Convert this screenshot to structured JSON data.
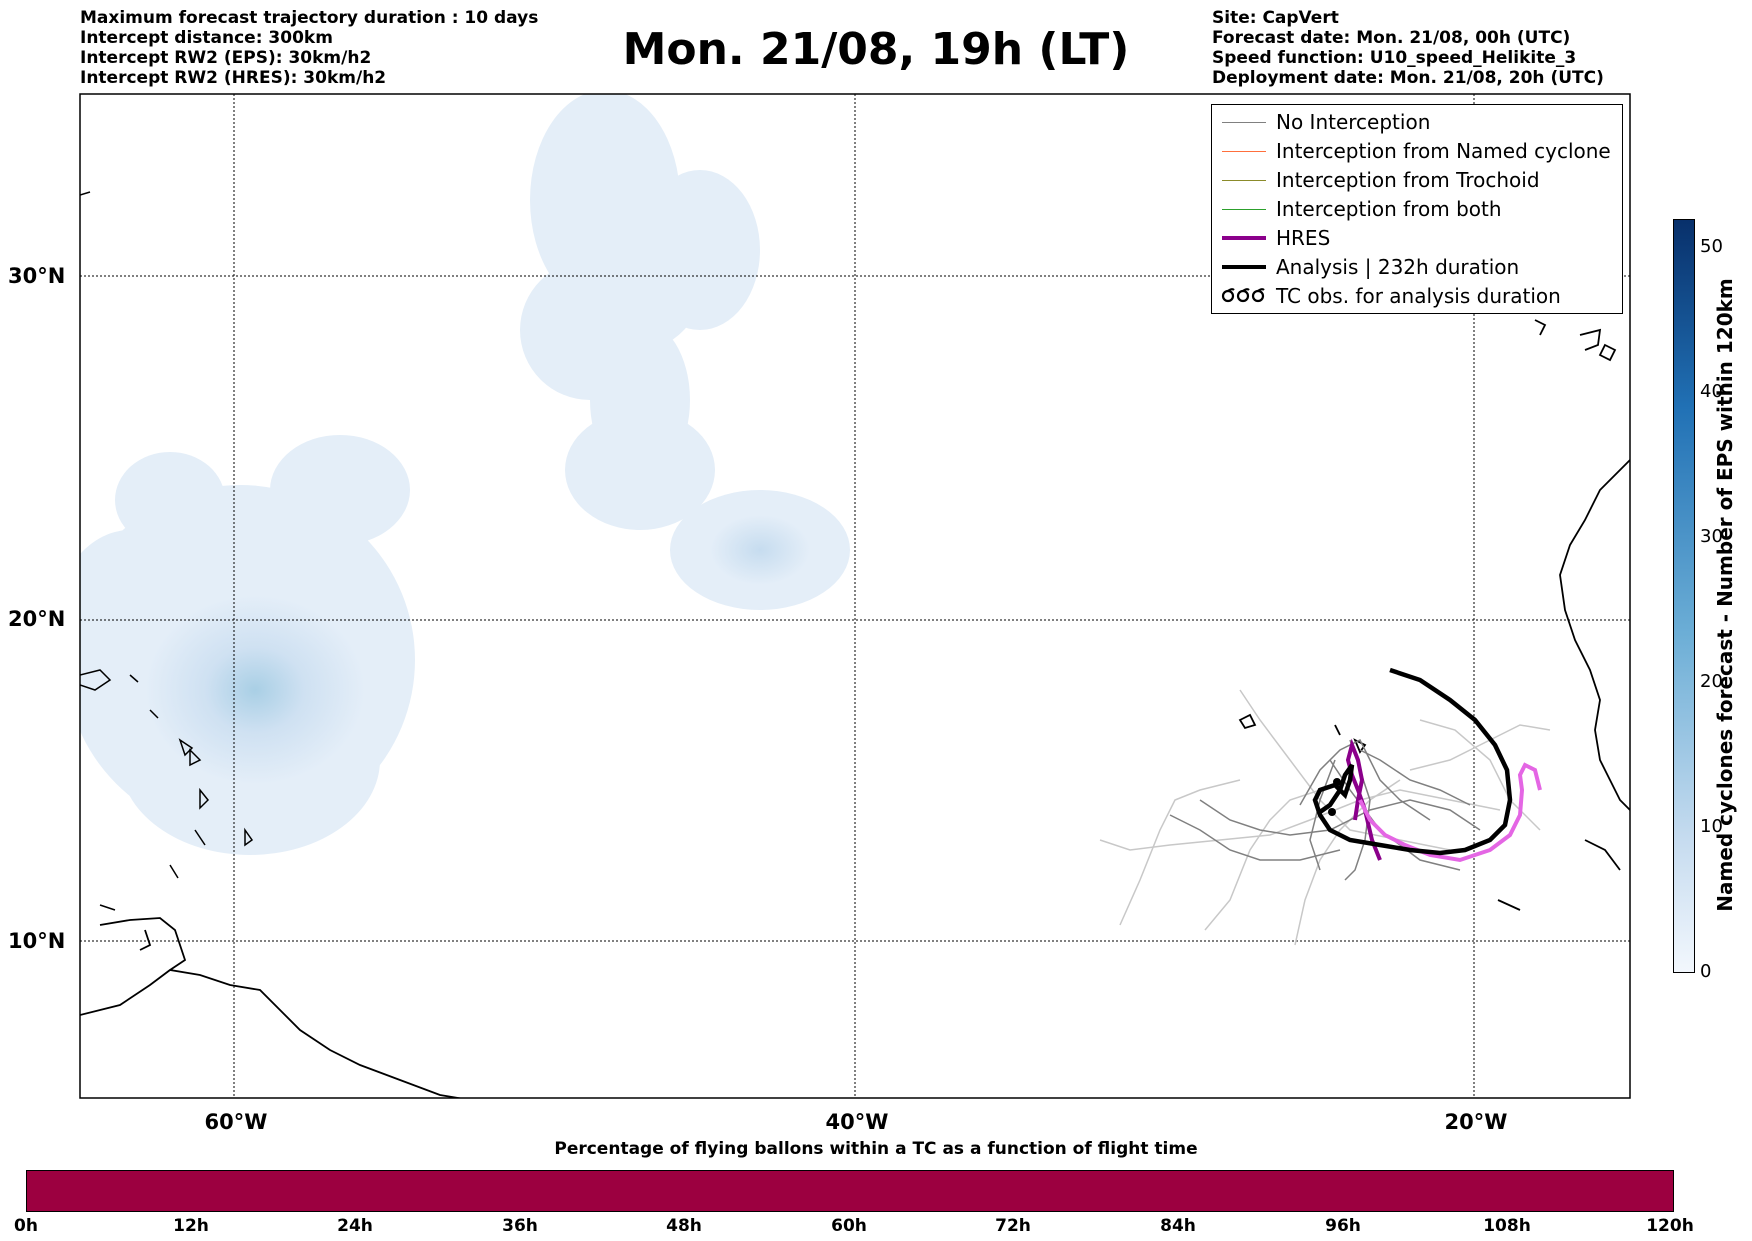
{
  "header_left": [
    "Maximum forecast trajectory duration : 10 days",
    "Intercept distance: 300km",
    "Intercept RW2 (EPS):  30km/h2",
    "Intercept RW2 (HRES): 30km/h2"
  ],
  "title": "Mon. 21/08, 19h (LT)",
  "header_right": [
    "Site: CapVert",
    "Forecast date: Mon. 21/08, 00h (UTC)",
    "Speed function: U10_speed_Helikite_3",
    "Deployment date: Mon. 21/08, 20h (UTC)"
  ],
  "map": {
    "lat_labels": [
      "30°N",
      "20°N",
      "10°N"
    ],
    "lon_labels": [
      "60°W",
      "40°W",
      "20°W"
    ]
  },
  "legend": [
    {
      "label": "No Interception",
      "color": "#808080",
      "style": "thin"
    },
    {
      "label": "Interception from Named cyclone",
      "color": "#ff6f3c",
      "style": "thin"
    },
    {
      "label": "Interception from Trochoid",
      "color": "#8b8b2a",
      "style": "thin"
    },
    {
      "label": "Interception from both",
      "color": "#2ca02c",
      "style": "thin"
    },
    {
      "label": "HRES",
      "color": "#8b008b",
      "style": "thick"
    },
    {
      "label": "Analysis | 232h duration",
      "color": "#000000",
      "style": "thick"
    },
    {
      "label": "TC obs. for analysis duration",
      "color": "#000000",
      "style": "marker"
    }
  ],
  "right_colorbar": {
    "label": "Named cyclones forecast - Number of EPS within 120km",
    "ticks": [
      "0",
      "10",
      "20",
      "30",
      "40",
      "50"
    ]
  },
  "bottom_colorbar": {
    "title": "Percentage of flying ballons within a TC as a function of flight time",
    "ticks": [
      "0h",
      "12h",
      "24h",
      "36h",
      "48h",
      "60h",
      "72h",
      "84h",
      "96h",
      "108h",
      "120h"
    ],
    "color": "#9c0040"
  }
}
